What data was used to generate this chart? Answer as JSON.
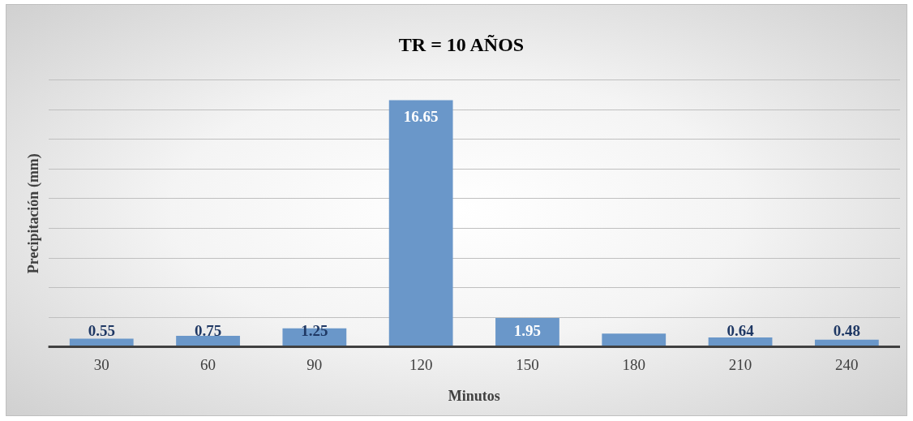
{
  "chart_data": {
    "type": "bar",
    "title": "TR = 10 AÑOS",
    "xlabel": "Minutos",
    "ylabel": "Precipitación (mm)",
    "categories": [
      "30",
      "60",
      "90",
      "120",
      "150",
      "180",
      "210",
      "240"
    ],
    "values": [
      0.55,
      0.75,
      1.25,
      16.65,
      1.95,
      0.9,
      0.64,
      0.48
    ],
    "value_labels": [
      "0.55",
      "0.75",
      "1.25",
      "16.65",
      "1.95",
      null,
      "0.64",
      "0.48"
    ],
    "color": "#6a97c9",
    "ylim": [
      0,
      18
    ],
    "yticks": [
      {
        "value": 0,
        "label": null
      },
      {
        "value": 2,
        "label": null
      },
      {
        "value": 4,
        "label": null
      },
      {
        "value": 6,
        "label": null
      },
      {
        "value": 8,
        "label": null
      },
      {
        "value": 10,
        "label": null
      },
      {
        "value": 12,
        "label": null
      },
      {
        "value": 14,
        "label": null
      },
      {
        "value": 16,
        "label": null
      },
      {
        "value": 18,
        "label": null
      }
    ],
    "grid": "y",
    "legend": false
  }
}
